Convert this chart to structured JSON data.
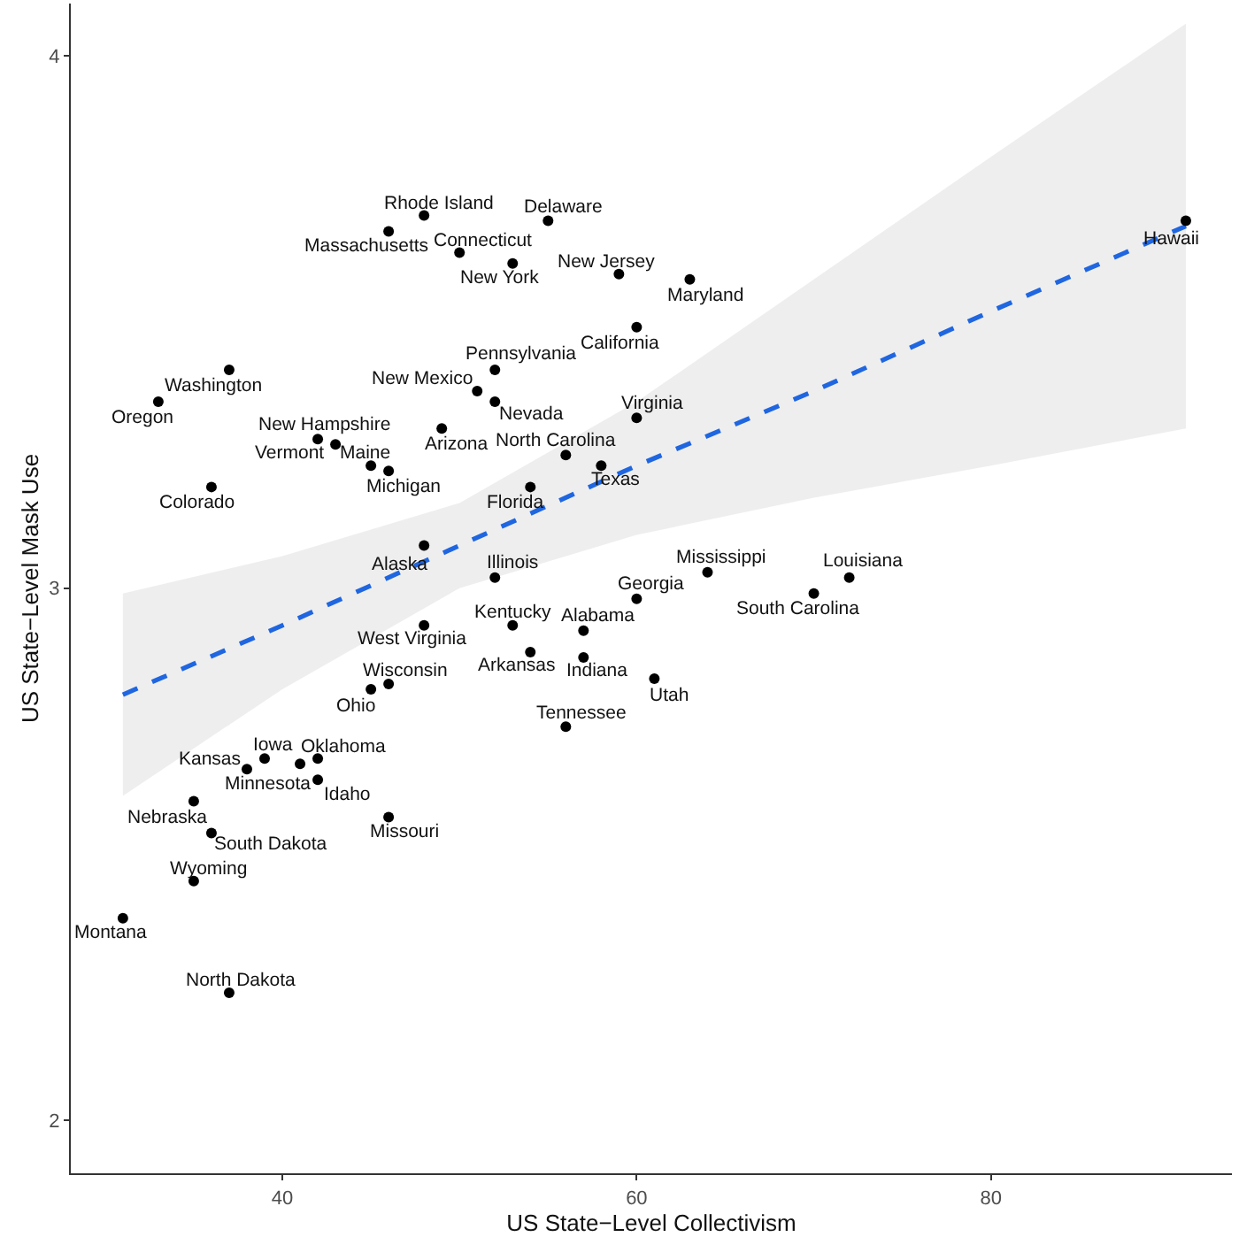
{
  "chart_data": {
    "type": "scatter",
    "xlabel": "US State−Level Collectivism",
    "ylabel": "US State−Level Mask Use",
    "xlim": [
      28.06,
      93.6
    ],
    "ylim": [
      1.901,
      4.098
    ],
    "xticks": [
      40,
      60,
      80
    ],
    "yticks": [
      2,
      3,
      4
    ],
    "grid": false,
    "series": [
      {
        "type": "line",
        "color": "#1f66e0",
        "line_style": "dashed",
        "marker": "none",
        "x": [
          31,
          40,
          50,
          60,
          70,
          80,
          91
        ],
        "values": [
          2.8,
          2.93,
          3.08,
          3.23,
          3.37,
          3.52,
          3.68
        ],
        "lower": [
          2.61,
          2.81,
          3.0,
          3.1,
          3.17,
          3.23,
          3.3
        ],
        "upper": [
          2.99,
          3.06,
          3.16,
          3.35,
          3.58,
          3.81,
          4.06
        ]
      },
      {
        "color": "#000000",
        "marker": "circle",
        "x": [
          48,
          46,
          55,
          50,
          53,
          59,
          63,
          60,
          52,
          51,
          52,
          60,
          37,
          33,
          43,
          42,
          45,
          46,
          49,
          56,
          58,
          54,
          36,
          48,
          52,
          91,
          64,
          72,
          70,
          60,
          53,
          57,
          48,
          54,
          57,
          61,
          56,
          46,
          45,
          39,
          38,
          41,
          42,
          42,
          35,
          36,
          46,
          35,
          31,
          37
        ],
        "values": [
          3.7,
          3.67,
          3.69,
          3.63,
          3.61,
          3.59,
          3.58,
          3.49,
          3.41,
          3.37,
          3.35,
          3.32,
          3.41,
          3.35,
          3.27,
          3.28,
          3.23,
          3.22,
          3.3,
          3.25,
          3.23,
          3.19,
          3.19,
          3.08,
          3.02,
          3.69,
          3.03,
          3.02,
          2.99,
          2.98,
          2.93,
          2.92,
          2.93,
          2.88,
          2.87,
          2.83,
          2.74,
          2.82,
          2.81,
          2.68,
          2.66,
          2.67,
          2.68,
          2.64,
          2.6,
          2.54,
          2.57,
          2.45,
          2.38,
          2.24
        ]
      }
    ],
    "annotations": [
      {
        "text": "Rhode Island",
        "x": 48,
        "y": 3.7
      },
      {
        "text": "Massachusetts",
        "x": 46,
        "y": 3.67
      },
      {
        "text": "Delaware",
        "x": 55,
        "y": 3.69
      },
      {
        "text": "Connecticut",
        "x": 50,
        "y": 3.63
      },
      {
        "text": "New York",
        "x": 53,
        "y": 3.61
      },
      {
        "text": "New Jersey",
        "x": 59,
        "y": 3.59
      },
      {
        "text": "Maryland",
        "x": 63,
        "y": 3.58
      },
      {
        "text": "California",
        "x": 60,
        "y": 3.49
      },
      {
        "text": "Pennsylvania",
        "x": 52,
        "y": 3.41
      },
      {
        "text": "New Mexico",
        "x": 51,
        "y": 3.37
      },
      {
        "text": "Nevada",
        "x": 52,
        "y": 3.35
      },
      {
        "text": "Virginia",
        "x": 60,
        "y": 3.32
      },
      {
        "text": "Washington",
        "x": 37,
        "y": 3.41
      },
      {
        "text": "Oregon",
        "x": 33,
        "y": 3.35
      },
      {
        "text": "New Hampshire",
        "x": 43,
        "y": 3.27
      },
      {
        "text": "Vermont",
        "x": 42,
        "y": 3.28
      },
      {
        "text": "Maine",
        "x": 45,
        "y": 3.23
      },
      {
        "text": "Michigan",
        "x": 46,
        "y": 3.22
      },
      {
        "text": "Arizona",
        "x": 49,
        "y": 3.3
      },
      {
        "text": "North Carolina",
        "x": 56,
        "y": 3.25
      },
      {
        "text": "Texas",
        "x": 58,
        "y": 3.23
      },
      {
        "text": "Florida",
        "x": 54,
        "y": 3.19
      },
      {
        "text": "Colorado",
        "x": 36,
        "y": 3.19
      },
      {
        "text": "Alaska",
        "x": 48,
        "y": 3.08
      },
      {
        "text": "Illinois",
        "x": 52,
        "y": 3.02
      },
      {
        "text": "Hawaii",
        "x": 91,
        "y": 3.69
      },
      {
        "text": "Mississippi",
        "x": 64,
        "y": 3.03
      },
      {
        "text": "Louisiana",
        "x": 72,
        "y": 3.02
      },
      {
        "text": "South Carolina",
        "x": 70,
        "y": 2.99
      },
      {
        "text": "Georgia",
        "x": 60,
        "y": 2.98
      },
      {
        "text": "Kentucky",
        "x": 53,
        "y": 2.93
      },
      {
        "text": "Alabama",
        "x": 57,
        "y": 2.92
      },
      {
        "text": "West Virginia",
        "x": 48,
        "y": 2.93
      },
      {
        "text": "Arkansas",
        "x": 54,
        "y": 2.88
      },
      {
        "text": "Indiana",
        "x": 57,
        "y": 2.87
      },
      {
        "text": "Utah",
        "x": 61,
        "y": 2.83
      },
      {
        "text": "Tennessee",
        "x": 56,
        "y": 2.74
      },
      {
        "text": "Wisconsin",
        "x": 46,
        "y": 2.82
      },
      {
        "text": "Ohio",
        "x": 45,
        "y": 2.81
      },
      {
        "text": "Iowa",
        "x": 39,
        "y": 2.68
      },
      {
        "text": "Kansas",
        "x": 38,
        "y": 2.66
      },
      {
        "text": "Minnesota",
        "x": 41,
        "y": 2.67
      },
      {
        "text": "Oklahoma",
        "x": 42,
        "y": 2.68
      },
      {
        "text": "Idaho",
        "x": 42,
        "y": 2.64
      },
      {
        "text": "Nebraska",
        "x": 35,
        "y": 2.6
      },
      {
        "text": "South Dakota",
        "x": 36,
        "y": 2.54
      },
      {
        "text": "Missouri",
        "x": 46,
        "y": 2.57
      },
      {
        "text": "Wyoming",
        "x": 35,
        "y": 2.45
      },
      {
        "text": "Montana",
        "x": 31,
        "y": 2.38
      },
      {
        "text": "North Dakota",
        "x": 37,
        "y": 2.24
      }
    ]
  }
}
